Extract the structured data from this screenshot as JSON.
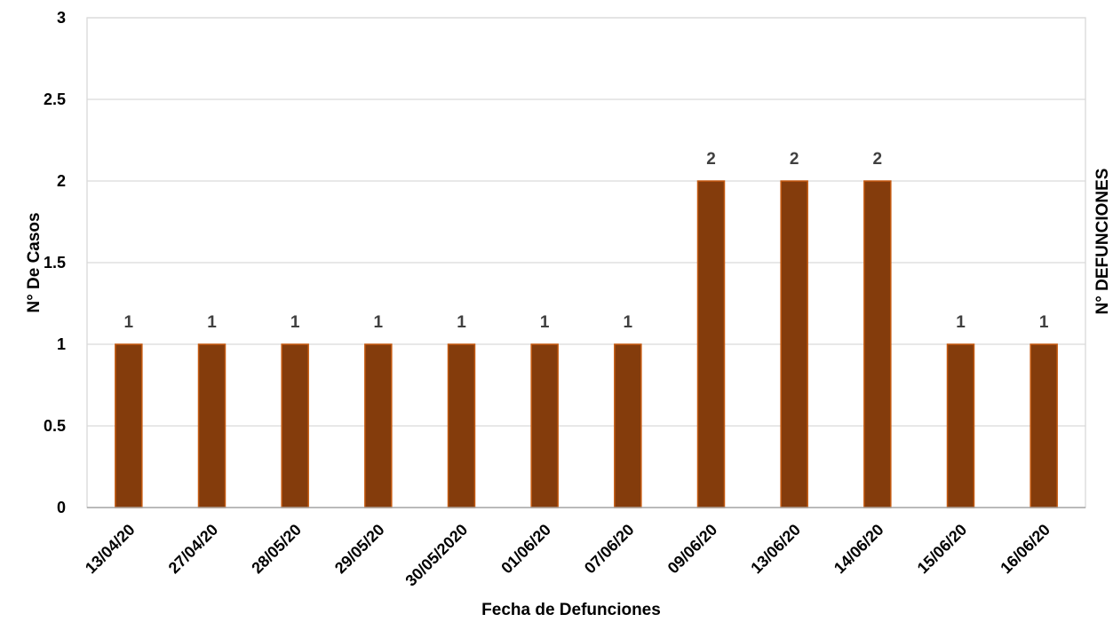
{
  "chart_data": {
    "type": "bar",
    "categories": [
      "13/04/20",
      "27/04/20",
      "28/05/20",
      "29/05/20",
      "30/05/2020",
      "01/06/20",
      "07/06/20",
      "09/06/20",
      "13/06/20",
      "14/06/20",
      "15/06/20",
      "16/06/20"
    ],
    "values": [
      1,
      1,
      1,
      1,
      1,
      1,
      1,
      2,
      2,
      2,
      1,
      1
    ],
    "xlabel": "Fecha de Defunciones",
    "ylabel": "N° De Casos",
    "ylabel_right": "N° DEFUNCIONES",
    "ylim": [
      0,
      3
    ],
    "yticks": [
      "0",
      "0.5",
      "1",
      "1.5",
      "2",
      "2.5",
      "3"
    ],
    "grid": true,
    "data_labels": true,
    "colors": {
      "bar_fill": "#843C0C",
      "bar_stroke": "#C55A11"
    }
  }
}
